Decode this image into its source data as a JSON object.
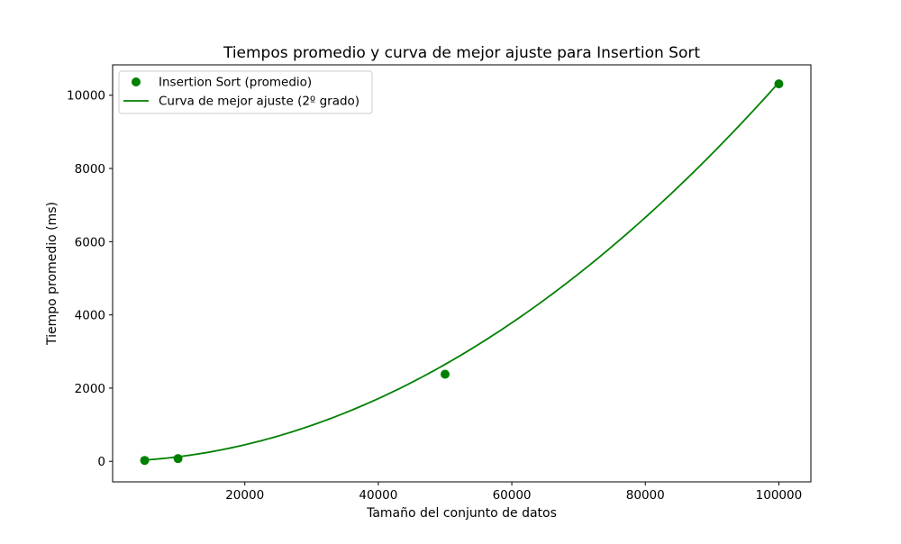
{
  "chart_data": {
    "type": "scatter",
    "title": "Tiempos promedio y curva de mejor ajuste para Insertion Sort",
    "xlabel": "Tamaño del conjunto de datos",
    "ylabel": "Tiempo promedio (ms)",
    "xlim": [
      200,
      104800
    ],
    "ylim": [
      -560,
      10830
    ],
    "x_ticks": [
      20000,
      40000,
      60000,
      80000,
      100000
    ],
    "y_ticks": [
      0,
      2000,
      4000,
      6000,
      8000,
      10000
    ],
    "grid": false,
    "legend_position": "top-left",
    "color": "#008000",
    "series": [
      {
        "name": "Insertion Sort (promedio)",
        "kind": "scatter",
        "x": [
          5000,
          10000,
          50000,
          100000
        ],
        "y": [
          25,
          75,
          2380,
          10310
        ]
      },
      {
        "name": "Curva de mejor ajuste (2º grado)",
        "kind": "line",
        "fit": "polynomial-2",
        "coefficients": [
          1.01e-06,
          0.0025,
          -1.6
        ],
        "x_range": [
          5000,
          100000
        ]
      }
    ]
  }
}
